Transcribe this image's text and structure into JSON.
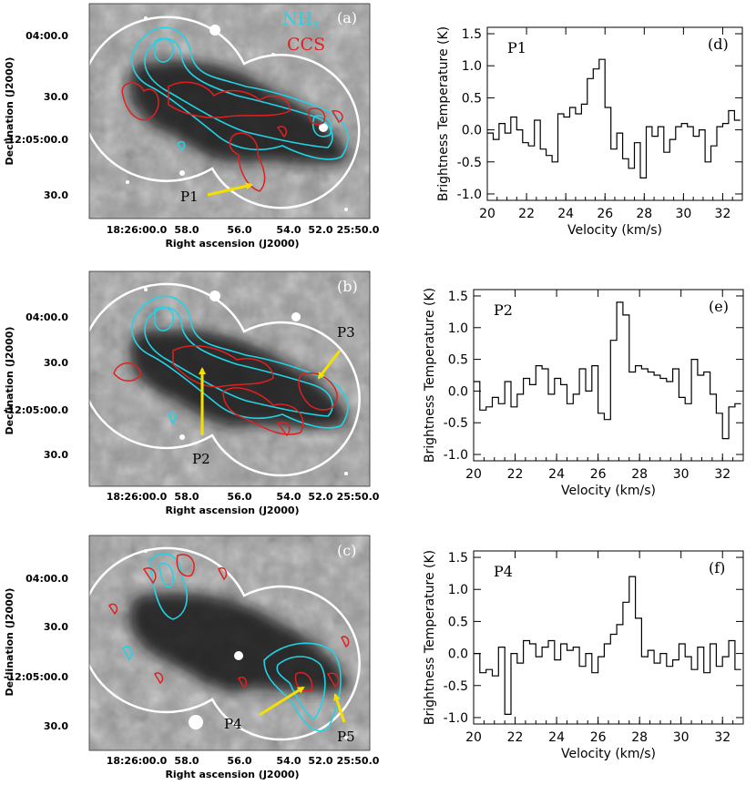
{
  "colors": {
    "nh3": "#22d3e6",
    "ccs": "#e02020",
    "arrow": "#f5e000",
    "boundary": "#ffffff"
  },
  "maps": [
    {
      "id": "a",
      "panel_label": "(a)",
      "legend": [
        "NH3",
        "CCS"
      ],
      "peaks": [
        {
          "label": "P1"
        }
      ],
      "xlabel": "Right ascension (J2000)",
      "ylabel": "Declination (J2000)",
      "xticks": [
        "18:26:00.0",
        "58.0",
        "56.0",
        "54.0",
        "52.0",
        "25:50.0"
      ],
      "yticks": [
        "04:00.0",
        "30.0",
        "-12:05:00.0",
        "30.0"
      ]
    },
    {
      "id": "b",
      "panel_label": "(b)",
      "legend": [],
      "peaks": [
        {
          "label": "P2"
        },
        {
          "label": "P3"
        }
      ],
      "xlabel": "Right ascension (J2000)",
      "ylabel": "Declination (J2000)",
      "xticks": [
        "18:26:00.0",
        "58.0",
        "56.0",
        "54.0",
        "52.0",
        "25:50.0"
      ],
      "yticks": [
        "04:00.0",
        "30.0",
        "-12:05:00.0",
        "30.0"
      ]
    },
    {
      "id": "c",
      "panel_label": "(c)",
      "legend": [],
      "peaks": [
        {
          "label": "P4"
        },
        {
          "label": "P5"
        }
      ],
      "xlabel": "Right ascension (J2000)",
      "ylabel": "Declination (J2000)",
      "xticks": [
        "18:26:00.0",
        "58.0",
        "56.0",
        "54.0",
        "52.0",
        "25:50.0"
      ],
      "yticks": [
        "04:00.0",
        "30.0",
        "-12:05:00.0",
        "30.0"
      ]
    }
  ],
  "chart_data": [
    {
      "type": "line",
      "title": "P1",
      "panel_label": "(d)",
      "xlabel": "Velocity (km/s)",
      "ylabel": "Brightness Temperature (K)",
      "xlim": [
        20,
        33
      ],
      "ylim": [
        -1.1,
        1.6
      ],
      "xticks": [
        20,
        22,
        24,
        26,
        28,
        30,
        32
      ],
      "yticks": [
        -1.0,
        -0.5,
        0.0,
        0.5,
        1.0,
        1.5
      ],
      "x": [
        20.0,
        20.3,
        20.6,
        20.9,
        21.2,
        21.5,
        21.8,
        22.1,
        22.4,
        22.7,
        23.0,
        23.3,
        23.6,
        23.9,
        24.2,
        24.5,
        24.8,
        25.1,
        25.4,
        25.7,
        26.0,
        26.3,
        26.6,
        26.9,
        27.2,
        27.5,
        27.8,
        28.1,
        28.4,
        28.7,
        29.0,
        29.3,
        29.6,
        29.9,
        30.2,
        30.5,
        30.8,
        31.1,
        31.4,
        31.7,
        32.0,
        32.3,
        32.6
      ],
      "values": [
        -0.05,
        -0.15,
        0.1,
        -0.05,
        0.2,
        0.0,
        -0.2,
        -0.25,
        0.15,
        -0.3,
        -0.4,
        -0.5,
        0.25,
        0.2,
        0.35,
        0.25,
        0.4,
        0.8,
        0.95,
        1.1,
        0.35,
        -0.3,
        -0.05,
        -0.45,
        -0.6,
        -0.2,
        -0.75,
        0.05,
        -0.1,
        0.05,
        -0.35,
        -0.15,
        0.05,
        0.1,
        0.05,
        -0.1,
        0.0,
        -0.5,
        -0.25,
        0.05,
        0.1,
        0.3,
        0.15
      ]
    },
    {
      "type": "line",
      "title": "P2",
      "panel_label": "(e)",
      "xlabel": "Velocity (km/s)",
      "ylabel": "Brightness Temperature (K)",
      "xlim": [
        20,
        33
      ],
      "ylim": [
        -1.1,
        1.6
      ],
      "xticks": [
        20,
        22,
        24,
        26,
        28,
        30,
        32
      ],
      "yticks": [
        -1.0,
        -0.5,
        0.0,
        0.5,
        1.0,
        1.5
      ],
      "x": [
        20.0,
        20.3,
        20.6,
        20.9,
        21.2,
        21.5,
        21.8,
        22.1,
        22.4,
        22.7,
        23.0,
        23.3,
        23.6,
        23.9,
        24.2,
        24.5,
        24.8,
        25.1,
        25.4,
        25.7,
        26.0,
        26.3,
        26.6,
        26.9,
        27.2,
        27.5,
        27.8,
        28.1,
        28.4,
        28.7,
        29.0,
        29.3,
        29.6,
        29.9,
        30.2,
        30.5,
        30.8,
        31.1,
        31.4,
        31.7,
        32.0,
        32.3,
        32.6
      ],
      "values": [
        0.15,
        -0.3,
        -0.25,
        -0.1,
        -0.2,
        0.15,
        -0.25,
        -0.05,
        0.2,
        0.1,
        0.4,
        0.35,
        -0.05,
        0.2,
        0.1,
        -0.2,
        -0.05,
        0.35,
        0.0,
        0.4,
        -0.35,
        -0.45,
        0.8,
        1.4,
        1.2,
        0.3,
        0.4,
        0.35,
        0.3,
        0.25,
        0.2,
        0.15,
        0.35,
        -0.1,
        -0.2,
        0.5,
        0.25,
        0.3,
        -0.05,
        -0.35,
        -0.75,
        -0.25,
        -0.2
      ]
    },
    {
      "type": "line",
      "title": "P4",
      "panel_label": "(f)",
      "xlabel": "Velocity (km/s)",
      "ylabel": "Brightness Temperature (K)",
      "xlim": [
        20,
        33
      ],
      "ylim": [
        -1.1,
        1.6
      ],
      "xticks": [
        20,
        22,
        24,
        26,
        28,
        30,
        32
      ],
      "yticks": [
        -1.0,
        -0.5,
        0.0,
        0.5,
        1.0,
        1.5
      ],
      "x": [
        20.0,
        20.3,
        20.6,
        20.9,
        21.2,
        21.5,
        21.8,
        22.1,
        22.4,
        22.7,
        23.0,
        23.3,
        23.6,
        23.9,
        24.2,
        24.5,
        24.8,
        25.1,
        25.4,
        25.7,
        26.0,
        26.3,
        26.6,
        26.9,
        27.2,
        27.5,
        27.8,
        28.1,
        28.4,
        28.7,
        29.0,
        29.3,
        29.6,
        29.9,
        30.2,
        30.5,
        30.8,
        31.1,
        31.4,
        31.7,
        32.0,
        32.3,
        32.6
      ],
      "values": [
        0.0,
        -0.3,
        -0.25,
        -0.35,
        0.1,
        -0.95,
        0.0,
        -0.15,
        0.2,
        0.15,
        -0.05,
        0.1,
        0.2,
        -0.1,
        0.15,
        0.05,
        0.1,
        -0.2,
        0.0,
        -0.3,
        -0.05,
        0.15,
        0.3,
        0.45,
        0.8,
        1.2,
        0.55,
        -0.05,
        0.05,
        -0.15,
        0.0,
        -0.2,
        -0.1,
        0.15,
        -0.05,
        -0.25,
        0.1,
        -0.3,
        0.15,
        -0.2,
        -0.05,
        0.2,
        -0.25
      ]
    }
  ]
}
